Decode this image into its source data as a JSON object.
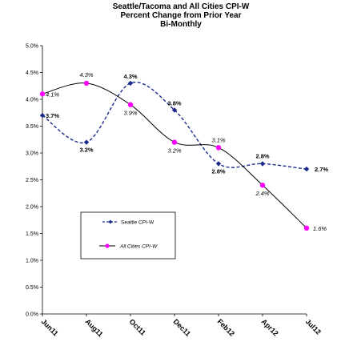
{
  "chart_data": {
    "type": "line",
    "title_lines": [
      "Seattle/Tacoma and All Cities CPI-W",
      "Percent Change from Prior Year",
      "Bi-Monthly"
    ],
    "categories": [
      "Jun11",
      "Aug11",
      "Oct11",
      "Dec11",
      "Feb12",
      "Apr12",
      "Jul12"
    ],
    "y_ticks": [
      "0.0%",
      "0.5%",
      "1.0%",
      "1.5%",
      "2.0%",
      "2.5%",
      "3.0%",
      "3.5%",
      "4.0%",
      "4.5%",
      "5.0%"
    ],
    "ylim": [
      0,
      5
    ],
    "grid": false,
    "legend_position": "center-left",
    "series": [
      {
        "name": "Seattle CPI-W",
        "values": [
          3.7,
          3.2,
          4.3,
          3.8,
          2.8,
          2.8,
          2.7
        ],
        "labels": [
          "3.7%",
          "3.2%",
          "4.3%",
          "3.8%",
          "2.8%",
          "2.8%",
          "2.7%"
        ],
        "color": "#1a2a8c",
        "marker": "diamond",
        "line": "dashed"
      },
      {
        "name": "All Cities CPI-W",
        "values": [
          4.1,
          4.3,
          3.9,
          3.2,
          3.1,
          2.4,
          1.6
        ],
        "labels": [
          "4.1%",
          "4.3%",
          "3.9%",
          "3.2%",
          "3.1%",
          "2.4%",
          "1.6%"
        ],
        "color": "#000000",
        "marker_color": "#ff00ff",
        "marker": "circle",
        "line": "solid"
      }
    ]
  }
}
